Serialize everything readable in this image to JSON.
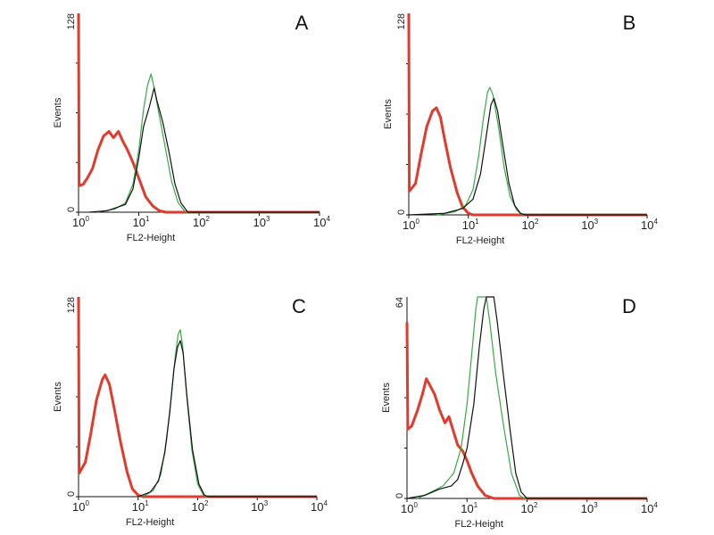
{
  "chart_data": [
    {
      "type": "line",
      "panel": "A",
      "xlabel": "FL2-Height",
      "ylabel": "Events",
      "xscale": "log",
      "xlim": [
        1,
        10000
      ],
      "ylim": [
        0,
        128
      ],
      "y_tick_labels": [
        "0",
        "128"
      ],
      "x_tick_labels": [
        {
          "base": "10",
          "exp": "0"
        },
        {
          "base": "10",
          "exp": "1"
        },
        {
          "base": "10",
          "exp": "2"
        },
        {
          "base": "10",
          "exp": "3"
        },
        {
          "base": "10",
          "exp": "4"
        }
      ],
      "series": [
        {
          "color": "#e23a2c",
          "points": [
            [
              1,
              128
            ],
            [
              1.02,
              17
            ],
            [
              1.2,
              18
            ],
            [
              1.4,
              22
            ],
            [
              1.7,
              28
            ],
            [
              2.1,
              40
            ],
            [
              2.6,
              49
            ],
            [
              3.2,
              52
            ],
            [
              3.8,
              48
            ],
            [
              4.6,
              52
            ],
            [
              5.4,
              46
            ],
            [
              6.5,
              40
            ],
            [
              8,
              32
            ],
            [
              10,
              22
            ],
            [
              13,
              10
            ],
            [
              17,
              4
            ],
            [
              22,
              1
            ],
            [
              28,
              0
            ],
            [
              10000,
              0
            ]
          ]
        },
        {
          "color": "#3aa845",
          "points": [
            [
              2,
              0
            ],
            [
              4,
              2
            ],
            [
              6,
              6
            ],
            [
              8,
              18
            ],
            [
              10,
              40
            ],
            [
              12,
              66
            ],
            [
              14,
              82
            ],
            [
              16,
              89
            ],
            [
              18,
              80
            ],
            [
              22,
              62
            ],
            [
              28,
              40
            ],
            [
              35,
              20
            ],
            [
              45,
              6
            ],
            [
              60,
              0
            ],
            [
              10000,
              0
            ]
          ]
        },
        {
          "color": "#111111",
          "points": [
            [
              1.5,
              0
            ],
            [
              3,
              1
            ],
            [
              6,
              5
            ],
            [
              8,
              15
            ],
            [
              10,
              35
            ],
            [
              12,
              55
            ],
            [
              15,
              68
            ],
            [
              18,
              80
            ],
            [
              20,
              72
            ],
            [
              25,
              58
            ],
            [
              32,
              38
            ],
            [
              40,
              18
            ],
            [
              50,
              6
            ],
            [
              65,
              0
            ],
            [
              10000,
              0
            ]
          ]
        }
      ]
    },
    {
      "type": "line",
      "panel": "B",
      "xlabel": "FL2-Height",
      "ylabel": "Events",
      "xscale": "log",
      "xlim": [
        1,
        10000
      ],
      "ylim": [
        0,
        128
      ],
      "y_tick_labels": [
        "0",
        "128"
      ],
      "x_tick_labels": [
        {
          "base": "10",
          "exp": "0"
        },
        {
          "base": "10",
          "exp": "1"
        },
        {
          "base": "10",
          "exp": "2"
        },
        {
          "base": "10",
          "exp": "3"
        },
        {
          "base": "10",
          "exp": "4"
        }
      ],
      "series": [
        {
          "color": "#e23a2c",
          "points": [
            [
              1,
              128
            ],
            [
              1.02,
              15
            ],
            [
              1.3,
              20
            ],
            [
              1.6,
              38
            ],
            [
              2,
              56
            ],
            [
              2.5,
              66
            ],
            [
              2.9,
              68
            ],
            [
              3.4,
              62
            ],
            [
              4,
              48
            ],
            [
              5,
              30
            ],
            [
              6.5,
              14
            ],
            [
              8,
              5
            ],
            [
              10,
              1
            ],
            [
              12,
              0
            ],
            [
              10000,
              0
            ]
          ]
        },
        {
          "color": "#3aa845",
          "points": [
            [
              3,
              0
            ],
            [
              6,
              2
            ],
            [
              9,
              6
            ],
            [
              12,
              16
            ],
            [
              15,
              38
            ],
            [
              18,
              62
            ],
            [
              21,
              78
            ],
            [
              23,
              81
            ],
            [
              26,
              76
            ],
            [
              32,
              56
            ],
            [
              40,
              30
            ],
            [
              50,
              12
            ],
            [
              65,
              3
            ],
            [
              80,
              0
            ],
            [
              10000,
              0
            ]
          ]
        },
        {
          "color": "#111111",
          "points": [
            [
              1,
              0
            ],
            [
              4,
              1
            ],
            [
              8,
              4
            ],
            [
              12,
              10
            ],
            [
              16,
              26
            ],
            [
              20,
              50
            ],
            [
              24,
              70
            ],
            [
              27,
              74
            ],
            [
              31,
              66
            ],
            [
              38,
              44
            ],
            [
              48,
              20
            ],
            [
              60,
              6
            ],
            [
              75,
              1
            ],
            [
              90,
              0
            ],
            [
              10000,
              0
            ]
          ]
        }
      ]
    },
    {
      "type": "line",
      "panel": "C",
      "xlabel": "FL2-Height",
      "ylabel": "Events",
      "xscale": "log",
      "xlim": [
        1,
        10000
      ],
      "ylim": [
        0,
        128
      ],
      "y_tick_labels": [
        "0",
        "128"
      ],
      "x_tick_labels": [
        {
          "base": "10",
          "exp": "0"
        },
        {
          "base": "10",
          "exp": "1"
        },
        {
          "base": "10",
          "exp": "2"
        },
        {
          "base": "10",
          "exp": "3"
        },
        {
          "base": "10",
          "exp": "4"
        }
      ],
      "series": [
        {
          "color": "#e23a2c",
          "points": [
            [
              1,
              128
            ],
            [
              1.02,
              15
            ],
            [
              1.3,
              22
            ],
            [
              1.6,
              40
            ],
            [
              2,
              62
            ],
            [
              2.5,
              75
            ],
            [
              2.8,
              78
            ],
            [
              3.3,
              72
            ],
            [
              4,
              56
            ],
            [
              5,
              36
            ],
            [
              6.5,
              16
            ],
            [
              8,
              5
            ],
            [
              10,
              1
            ],
            [
              12,
              0
            ],
            [
              10000,
              0
            ]
          ]
        },
        {
          "color": "#3aa845",
          "points": [
            [
              12,
              0
            ],
            [
              18,
              4
            ],
            [
              24,
              14
            ],
            [
              30,
              36
            ],
            [
              36,
              64
            ],
            [
              42,
              90
            ],
            [
              47,
              104
            ],
            [
              51,
              107
            ],
            [
              56,
              96
            ],
            [
              65,
              66
            ],
            [
              80,
              30
            ],
            [
              100,
              8
            ],
            [
              125,
              1
            ],
            [
              140,
              0
            ],
            [
              10000,
              0
            ]
          ]
        },
        {
          "color": "#111111",
          "points": [
            [
              10,
              0
            ],
            [
              16,
              3
            ],
            [
              22,
              10
            ],
            [
              28,
              28
            ],
            [
              34,
              54
            ],
            [
              40,
              82
            ],
            [
              46,
              96
            ],
            [
              51,
              100
            ],
            [
              57,
              92
            ],
            [
              66,
              64
            ],
            [
              82,
              30
            ],
            [
              105,
              8
            ],
            [
              130,
              1
            ],
            [
              150,
              0
            ],
            [
              10000,
              0
            ]
          ]
        }
      ]
    },
    {
      "type": "line",
      "panel": "D",
      "xlabel": "FL2-Height",
      "ylabel": "Events",
      "xscale": "log",
      "xlim": [
        1,
        10000
      ],
      "ylim": [
        0,
        64
      ],
      "y_tick_labels": [
        "0",
        "64"
      ],
      "x_tick_labels": [
        {
          "base": "10",
          "exp": "0"
        },
        {
          "base": "10",
          "exp": "1"
        },
        {
          "base": "10",
          "exp": "2"
        },
        {
          "base": "10",
          "exp": "3"
        },
        {
          "base": "10",
          "exp": "4"
        }
      ],
      "series": [
        {
          "color": "#e23a2c",
          "points": [
            [
              1,
              56
            ],
            [
              1.03,
              22
            ],
            [
              1.2,
              23
            ],
            [
              1.5,
              28
            ],
            [
              1.8,
              33
            ],
            [
              2.1,
              38
            ],
            [
              2.4,
              36
            ],
            [
              2.9,
              33
            ],
            [
              3.5,
              28
            ],
            [
              4.3,
              24
            ],
            [
              5,
              26
            ],
            [
              5.8,
              22
            ],
            [
              7,
              17
            ],
            [
              8.5,
              15
            ],
            [
              10,
              12
            ],
            [
              12,
              8
            ],
            [
              15,
              4
            ],
            [
              20,
              1
            ],
            [
              28,
              0
            ],
            [
              10000,
              0
            ]
          ]
        },
        {
          "color": "#3aa845",
          "points": [
            [
              1.5,
              0
            ],
            [
              2.5,
              2
            ],
            [
              4,
              4
            ],
            [
              6,
              8
            ],
            [
              8,
              16
            ],
            [
              10,
              30
            ],
            [
              12,
              46
            ],
            [
              14,
              60
            ],
            [
              15,
              64
            ],
            [
              21,
              64
            ],
            [
              24,
              56
            ],
            [
              30,
              40
            ],
            [
              40,
              24
            ],
            [
              55,
              8
            ],
            [
              75,
              1
            ],
            [
              90,
              0
            ],
            [
              10000,
              0
            ]
          ]
        },
        {
          "color": "#111111",
          "points": [
            [
              1,
              0
            ],
            [
              2,
              1
            ],
            [
              3.5,
              3
            ],
            [
              5.5,
              4
            ],
            [
              7,
              6
            ],
            [
              8.5,
              11
            ],
            [
              10,
              16
            ],
            [
              13,
              30
            ],
            [
              16,
              48
            ],
            [
              19,
              60
            ],
            [
              21,
              64
            ],
            [
              28,
              64
            ],
            [
              32,
              56
            ],
            [
              40,
              40
            ],
            [
              52,
              22
            ],
            [
              65,
              8
            ],
            [
              80,
              2
            ],
            [
              100,
              0
            ],
            [
              10000,
              0
            ]
          ]
        }
      ]
    }
  ]
}
